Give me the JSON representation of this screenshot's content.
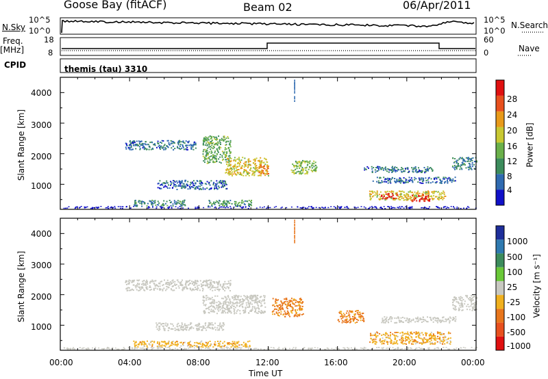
{
  "header": {
    "station": "Goose Bay (fitACF)",
    "beam": "Beam 02",
    "date": "06/Apr/2011"
  },
  "strip_panels": {
    "nsky_label": "N.Sky",
    "nsky_ticks": [
      "10^5",
      "10^0"
    ],
    "nsearch_label": "N.Search",
    "nsearch_ticks": [
      "10^5",
      "10^0"
    ],
    "freq_label": "Freq.",
    "freq_unit": "[MHz]",
    "freq_ticks": [
      "18",
      "8"
    ],
    "nave_label": "Nave",
    "nave_ticks": [
      "60",
      "0"
    ],
    "cpid_label": "CPID",
    "cpid_value": "themis (tau) 3310"
  },
  "chart_data": [
    {
      "type": "heatmap",
      "title": "",
      "xlabel": "Time UT",
      "ylabel": "Slant Range [km]",
      "xlim": [
        0,
        24
      ],
      "ylim": [
        180,
        4500
      ],
      "x_ticks": [
        "00:00",
        "04:00",
        "08:00",
        "12:00",
        "16:00",
        "20:00",
        "00:00"
      ],
      "y_ticks": [
        "1000",
        "2000",
        "3000",
        "4000"
      ],
      "colorbar": {
        "label": "Power [dB]",
        "ticks": [
          "28",
          "24",
          "20",
          "16",
          "12",
          "8",
          "4"
        ],
        "colors": [
          "#1010c8",
          "#2f6ab0",
          "#3c8c5c",
          "#6ab04a",
          "#c8c832",
          "#e89a1a",
          "#e8501e",
          "#e01010"
        ],
        "range": [
          0,
          30
        ]
      },
      "echo_regions": [
        {
          "t0": 3.7,
          "t1": 7.8,
          "r0": 2150,
          "r1": 2450,
          "value": 7
        },
        {
          "t0": 8.2,
          "t1": 9.8,
          "r0": 1700,
          "r1": 2600,
          "value": 12
        },
        {
          "t0": 9.5,
          "t1": 12.0,
          "r0": 1300,
          "r1": 1900,
          "value": 18
        },
        {
          "t0": 11.4,
          "t1": 12.0,
          "r0": 1350,
          "r1": 1650,
          "value": 22
        },
        {
          "t0": 13.3,
          "t1": 14.8,
          "r0": 1350,
          "r1": 1800,
          "value": 14
        },
        {
          "t0": 5.6,
          "t1": 9.6,
          "r0": 850,
          "r1": 1150,
          "value": 6
        },
        {
          "t0": 4.2,
          "t1": 7.2,
          "r0": 300,
          "r1": 500,
          "value": 8
        },
        {
          "t0": 8.5,
          "t1": 11.0,
          "r0": 300,
          "r1": 500,
          "value": 10
        },
        {
          "t0": 17.8,
          "t1": 22.2,
          "r0": 500,
          "r1": 800,
          "value": 18
        },
        {
          "t0": 18.5,
          "t1": 19.5,
          "r0": 550,
          "r1": 720,
          "value": 28
        },
        {
          "t0": 20.2,
          "t1": 21.3,
          "r0": 450,
          "r1": 680,
          "value": 29
        },
        {
          "t0": 18.0,
          "t1": 22.8,
          "r0": 1050,
          "r1": 1250,
          "value": 6
        },
        {
          "t0": 17.5,
          "t1": 21.5,
          "r0": 1400,
          "r1": 1600,
          "value": 7
        },
        {
          "t0": 22.6,
          "t1": 24.0,
          "r0": 1500,
          "r1": 1900,
          "value": 8
        }
      ]
    },
    {
      "type": "heatmap",
      "title": "",
      "xlabel": "Time UT",
      "ylabel": "Slant Range [km]",
      "xlim": [
        0,
        24
      ],
      "ylim": [
        180,
        4500
      ],
      "x_ticks": [
        "00:00",
        "04:00",
        "08:00",
        "12:00",
        "16:00",
        "20:00",
        "00:00"
      ],
      "y_ticks": [
        "1000",
        "2000",
        "3000",
        "4000"
      ],
      "colorbar": {
        "label": "Velocity [m s⁻¹]",
        "ticks": [
          "1000",
          "500",
          "100",
          "25",
          "-25",
          "-100",
          "-500",
          "-1000"
        ],
        "colors": [
          "#1e2e9a",
          "#2f7ab0",
          "#3c8c5c",
          "#6ac838",
          "#c8c8c0",
          "#f0b01e",
          "#e8761c",
          "#e8501e",
          "#e01010"
        ],
        "range": [
          -1000,
          1000
        ]
      },
      "echo_regions": [
        {
          "t0": 3.7,
          "t1": 9.8,
          "r0": 2150,
          "r1": 2500,
          "value": 0
        },
        {
          "t0": 8.2,
          "t1": 11.8,
          "r0": 1400,
          "r1": 2000,
          "value": 0
        },
        {
          "t0": 12.2,
          "t1": 14.0,
          "r0": 1300,
          "r1": 1900,
          "value": -150
        },
        {
          "t0": 5.5,
          "t1": 9.5,
          "r0": 850,
          "r1": 1100,
          "value": 0
        },
        {
          "t0": 4.2,
          "t1": 11.0,
          "r0": 300,
          "r1": 500,
          "value": -60
        },
        {
          "t0": 17.8,
          "t1": 22.5,
          "r0": 400,
          "r1": 800,
          "value": -70
        },
        {
          "t0": 18.5,
          "t1": 22.8,
          "r0": 1100,
          "r1": 1300,
          "value": 0
        },
        {
          "t0": 16.0,
          "t1": 17.5,
          "r0": 1100,
          "r1": 1500,
          "value": -150
        },
        {
          "t0": 22.6,
          "t1": 24.0,
          "r0": 1500,
          "r1": 2000,
          "value": 0
        }
      ]
    }
  ]
}
